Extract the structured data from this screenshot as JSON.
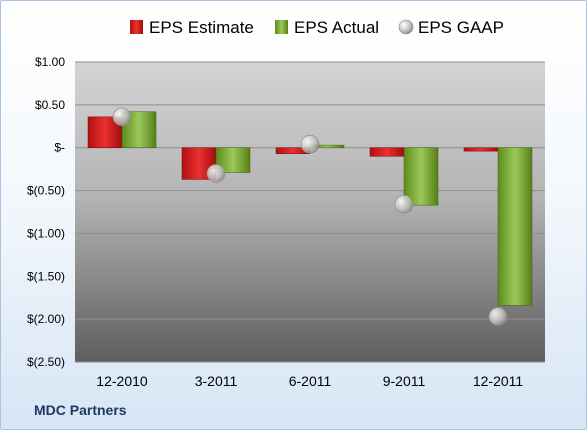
{
  "company": "MDC Partners",
  "chart_data": {
    "type": "bar",
    "categories": [
      "12-2010",
      "3-2011",
      "6-2011",
      "9-2011",
      "12-2011"
    ],
    "series": [
      {
        "name": "EPS Estimate",
        "kind": "bar",
        "color": "#cc1f1f",
        "values": [
          0.36,
          -0.37,
          -0.07,
          -0.1,
          -0.04
        ]
      },
      {
        "name": "EPS Actual",
        "kind": "bar",
        "color": "#6a9a1f",
        "values": [
          0.42,
          -0.29,
          0.03,
          -0.67,
          -1.84
        ]
      },
      {
        "name": "EPS GAAP",
        "kind": "marker",
        "color": "#b8b8b8",
        "values": [
          0.36,
          -0.3,
          0.04,
          -0.66,
          -1.97
        ]
      }
    ],
    "yticks": [
      "$1.00",
      "$0.50",
      "$-",
      "$(0.50)",
      "$(1.00)",
      "$(1.50)",
      "$(2.00)",
      "$(2.50)"
    ],
    "ylim": [
      -2.5,
      1.0
    ],
    "grid": true,
    "legend": "top"
  }
}
